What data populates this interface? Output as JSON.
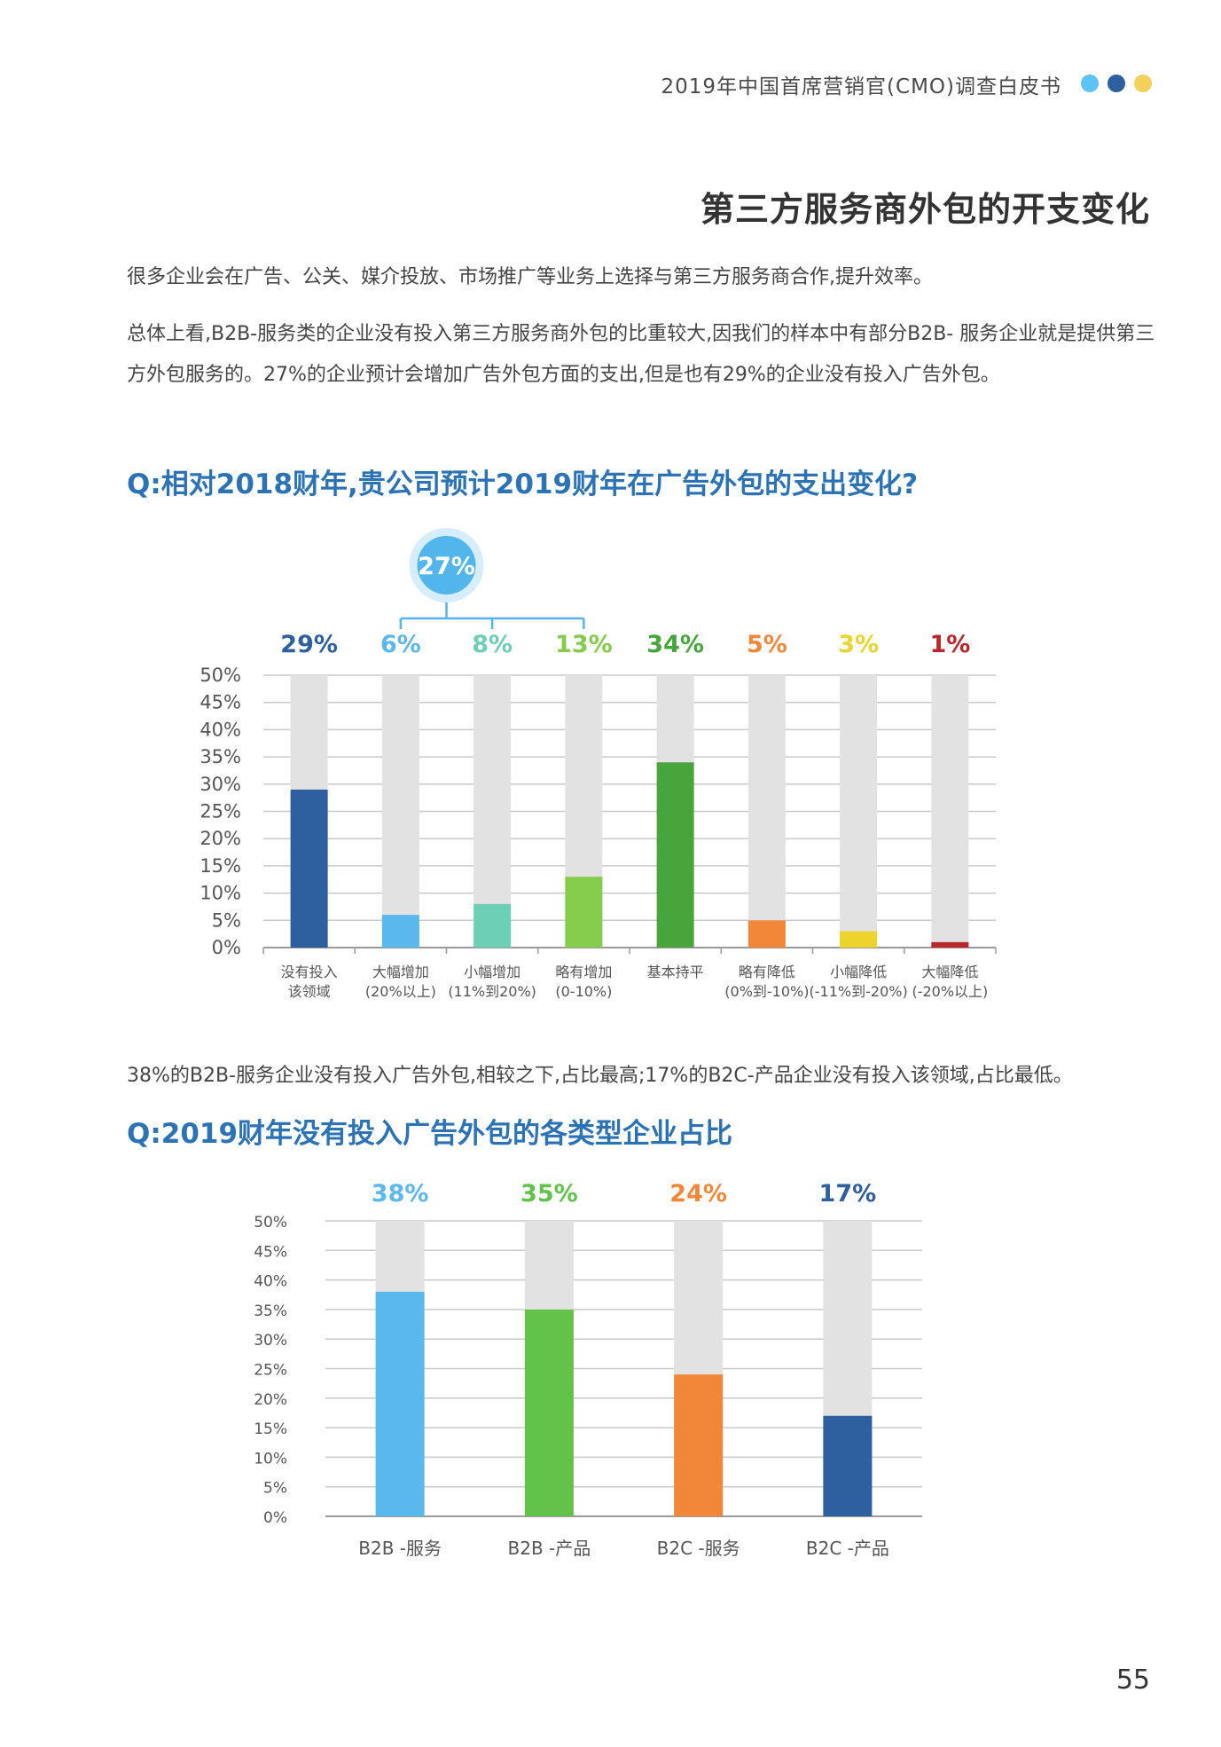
{
  "header": {
    "title": "2019年中国首席营销官(CMO)调查白皮书",
    "dot_colors": [
      "#5bc4f5",
      "#2e5f9e",
      "#f5d05a"
    ]
  },
  "page_title": "第三方服务商外包的开支变化",
  "paragraphs": [
    "很多企业会在广告、公关、媒介投放、市场推广等业务上选择与第三方服务商合作,提升效率。",
    "总体上看,B2B-服务类的企业没有投入第三方服务商外包的比重较大,因我们的样本中有部分B2B- 服务企业就是提供第三方外包服务的。27%的企业预计会增加广告外包方面的支出,但是也有29%的企业没有投入广告外包。",
    "38%的B2B-服务企业没有投入广告外包,相较之下,占比最高;17%的B2C-产品企业没有投入该领域,占比最低。"
  ],
  "questions": [
    "Q:相对2018财年,贵公司预计2019财年在广告外包的支出变化?",
    "Q:2019财年没有投入广告外包的各类型企业占比"
  ],
  "page_number": "55",
  "chart_data": [
    {
      "type": "bar",
      "categories": [
        [
          "没有投入",
          "该领域"
        ],
        [
          "大幅增加",
          "(20%以上)"
        ],
        [
          "小幅增加",
          "(11%到20%)"
        ],
        [
          "略有增加",
          "(0-10%)"
        ],
        [
          "基本持平",
          ""
        ],
        [
          "略有降低",
          "(0%到-10%)"
        ],
        [
          "小幅降低",
          "(-11%到-20%)"
        ],
        [
          "大幅降低",
          "(-20%以上)"
        ]
      ],
      "values": [
        29,
        6,
        8,
        13,
        34,
        5,
        3,
        1
      ],
      "value_labels": [
        "29%",
        "6%",
        "8%",
        "13%",
        "34%",
        "5%",
        "3%",
        "1%"
      ],
      "colors": [
        "#2e5f9e",
        "#5bb8ec",
        "#6dcfb5",
        "#84cc4a",
        "#47a53c",
        "#f2873a",
        "#ecd42c",
        "#b8282a"
      ],
      "ylim": [
        0,
        50
      ],
      "yticks": [
        "0%",
        "5%",
        "10%",
        "15%",
        "20%",
        "25%",
        "30%",
        "35%",
        "40%",
        "45%",
        "50%"
      ],
      "grid": true,
      "track_color": "#e2e2e2",
      "group_callout": {
        "label": "27%",
        "groups": [
          1,
          2,
          3
        ],
        "color": "#52b6ec"
      }
    },
    {
      "type": "bar",
      "categories": [
        "B2B -服务",
        "B2B -产品",
        "B2C -服务",
        "B2C -产品"
      ],
      "values": [
        38,
        35,
        24,
        17
      ],
      "value_labels": [
        "38%",
        "35%",
        "24%",
        "17%"
      ],
      "colors": [
        "#5bb8ec",
        "#62c24a",
        "#f2873a",
        "#2e5f9e"
      ],
      "ylim": [
        0,
        50
      ],
      "yticks": [
        "0%",
        "5%",
        "10%",
        "15%",
        "20%",
        "25%",
        "30%",
        "35%",
        "40%",
        "45%",
        "50%"
      ],
      "grid": true,
      "track_color": "#e2e2e2"
    }
  ]
}
